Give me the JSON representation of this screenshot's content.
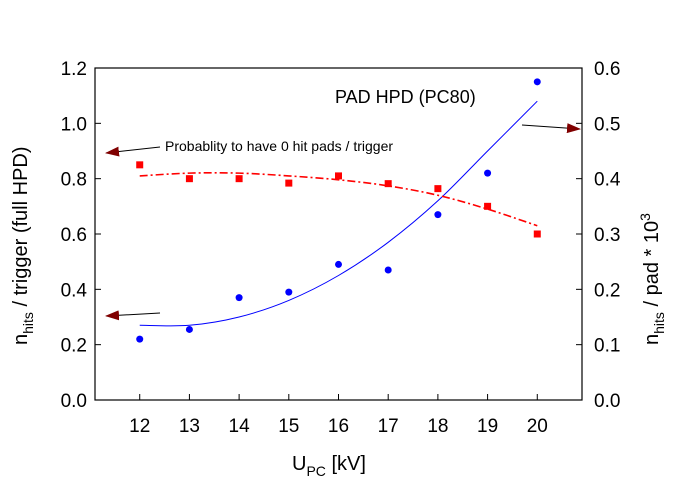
{
  "chart_data": {
    "type": "scatter",
    "title": "PAD HPD (PC80)",
    "annotation": "Probablity to have 0 hit pads / trigger",
    "xlabel": {
      "main": "U",
      "sub": "PC",
      "rest": " [kV]"
    },
    "ylabel_left": {
      "main": "n",
      "sub": "hits",
      "rest": " / trigger (full HPD)"
    },
    "ylabel_right": {
      "main": "n",
      "sub": "hits",
      "rest": " / pad * 10",
      "sup": "3"
    },
    "xlim": [
      11.1,
      20.9
    ],
    "ylim_left": [
      0,
      1.2
    ],
    "ylim_right": [
      0,
      0.6
    ],
    "xticks": [
      12,
      13,
      14,
      15,
      16,
      17,
      18,
      19,
      20
    ],
    "yticks_left": [
      "0.0",
      "0.2",
      "0.4",
      "0.6",
      "0.8",
      "1.0",
      "1.2"
    ],
    "yticks_right": [
      "0.0",
      "0.1",
      "0.2",
      "0.3",
      "0.4",
      "0.5",
      "0.6"
    ],
    "grid": false,
    "series": [
      {
        "axis": "left",
        "color": "#0000ff",
        "marker": "circle",
        "x": [
          12,
          13,
          14,
          15,
          16,
          17,
          18,
          19,
          20
        ],
        "y": [
          0.22,
          0.255,
          0.37,
          0.39,
          0.49,
          0.47,
          0.67,
          0.82,
          1.15
        ]
      },
      {
        "axis": "right",
        "color": "#ff0000",
        "marker": "square",
        "x": [
          12,
          13,
          14,
          15,
          16,
          17,
          18,
          19,
          20
        ],
        "y": [
          0.425,
          0.4,
          0.4,
          0.392,
          0.405,
          0.391,
          0.382,
          0.35,
          0.3
        ]
      }
    ],
    "fits": [
      {
        "axis": "left",
        "color": "#0000ff",
        "style": "solid",
        "x": [
          12,
          13,
          14,
          15,
          16,
          17,
          18,
          19,
          20
        ],
        "y": [
          0.27,
          0.27,
          0.3,
          0.36,
          0.45,
          0.57,
          0.72,
          0.9,
          1.08
        ]
      },
      {
        "axis": "right",
        "color": "#ff0000",
        "style": "dashdot",
        "x": [
          12,
          13,
          14,
          15,
          16,
          17,
          18,
          19,
          20
        ],
        "y": [
          0.405,
          0.41,
          0.41,
          0.405,
          0.398,
          0.387,
          0.37,
          0.345,
          0.315
        ]
      }
    ],
    "arrow_color": "#800000"
  }
}
